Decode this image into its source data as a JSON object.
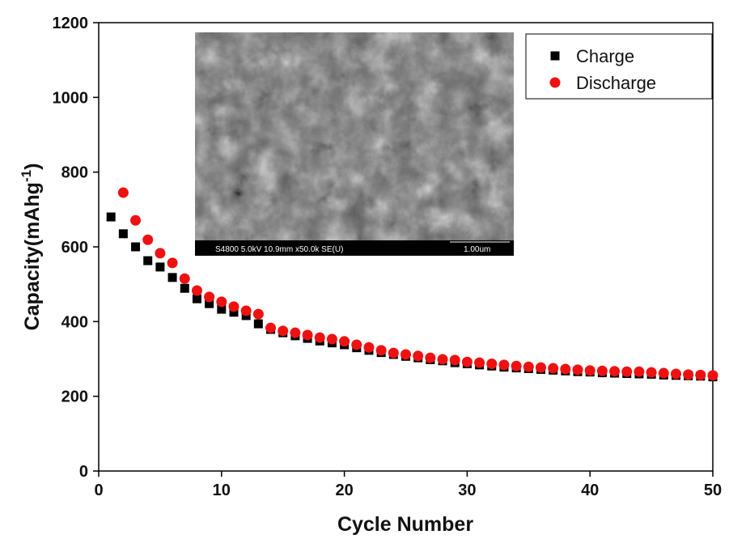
{
  "chart_data": {
    "type": "scatter",
    "x_label": "Cycle Number",
    "y_label": [
      "Capacity(mAhg",
      "-1",
      ")"
    ],
    "x": [
      1,
      2,
      3,
      4,
      5,
      6,
      7,
      8,
      9,
      10,
      11,
      12,
      13,
      14,
      15,
      16,
      17,
      18,
      19,
      20,
      21,
      22,
      23,
      24,
      25,
      26,
      27,
      28,
      29,
      30,
      31,
      32,
      33,
      34,
      35,
      36,
      37,
      38,
      39,
      40,
      41,
      42,
      43,
      44,
      45,
      46,
      47,
      48,
      49,
      50
    ],
    "series": [
      {
        "name": "Charge",
        "color": "#000000",
        "marker": "square",
        "values": [
          680,
          635,
          600,
          563,
          546,
          518,
          489,
          461,
          448,
          433,
          425,
          416,
          394,
          379,
          370,
          362,
          355,
          348,
          343,
          338,
          330,
          323,
          317,
          312,
          307,
          303,
          298,
          295,
          290,
          287,
          284,
          281,
          278,
          276,
          274,
          272,
          270,
          268,
          266,
          265,
          263,
          262,
          261,
          260,
          259,
          257,
          256,
          255,
          254,
          252
        ]
      },
      {
        "name": "Discharge",
        "color": "#ee1111",
        "marker": "circle",
        "values": [
          null,
          745,
          671,
          619,
          583,
          557,
          515,
          483,
          466,
          453,
          440,
          429,
          420,
          383,
          375,
          370,
          364,
          357,
          353,
          347,
          338,
          331,
          323,
          316,
          312,
          308,
          303,
          299,
          297,
          292,
          290,
          287,
          284,
          281,
          279,
          277,
          275,
          273,
          271,
          269,
          268,
          267,
          266,
          266,
          264,
          262,
          260,
          258,
          257,
          256
        ]
      }
    ],
    "xlim": [
      0,
      50
    ],
    "xticks": [
      0,
      10,
      20,
      30,
      40,
      50
    ],
    "ylim": [
      0,
      1200
    ],
    "yticks": [
      0,
      200,
      400,
      600,
      800,
      1000,
      1200
    ],
    "legend": "upper right",
    "inset": {
      "caption": "S4800 5.0kV 10.9mm x50.0k SE(U)",
      "scale": "1.00um"
    }
  }
}
